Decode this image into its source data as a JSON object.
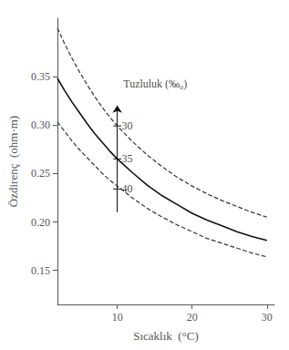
{
  "chart_data": {
    "type": "line",
    "x_label": "Sıcaklık  (°C)",
    "y_label": "Özdirenç  (ohm·m)",
    "x": [
      2,
      3,
      4,
      5,
      6,
      7,
      8,
      9,
      10,
      12,
      14,
      16,
      18,
      20,
      22,
      24,
      26,
      28,
      30
    ],
    "series": [
      {
        "color": "#333333",
        "line_style": "dashed",
        "values": [
          0.4,
          0.383,
          0.368,
          0.354,
          0.341,
          0.329,
          0.318,
          0.308,
          0.299,
          0.283,
          0.269,
          0.257,
          0.246,
          0.237,
          0.229,
          0.222,
          0.216,
          0.21,
          0.205
        ]
      },
      {
        "color": "#111111",
        "line_style": "solid",
        "values": [
          0.348,
          0.335,
          0.323,
          0.312,
          0.301,
          0.291,
          0.282,
          0.273,
          0.265,
          0.251,
          0.238,
          0.227,
          0.218,
          0.209,
          0.202,
          0.196,
          0.19,
          0.185,
          0.181
        ]
      },
      {
        "color": "#333333",
        "line_style": "dashed",
        "values": [
          0.303,
          0.293,
          0.283,
          0.274,
          0.266,
          0.258,
          0.25,
          0.243,
          0.237,
          0.225,
          0.214,
          0.205,
          0.197,
          0.19,
          0.183,
          0.178,
          0.173,
          0.168,
          0.164
        ]
      }
    ],
    "xlim": [
      2,
      31
    ],
    "ylim": [
      0.115,
      0.41
    ],
    "xticks": [
      10,
      20,
      30
    ],
    "yticks": [
      0.15,
      {
        "value": 0.2,
        "label": "0.20"
      },
      0.25,
      {
        "value": 0.3,
        "label": "0.30"
      },
      0.35
    ],
    "grid": false,
    "legend": false,
    "annotations": [
      {
        "text": "30",
        "x": 10.6,
        "y": 0.299,
        "color": "#111111"
      },
      {
        "text": "35",
        "x": 10.6,
        "y": 0.265,
        "color": "#111111"
      },
      {
        "text": "40",
        "x": 10.6,
        "y": 0.234,
        "color": "#111111"
      },
      {
        "text": "Tuzluluk (‰₀)",
        "x": 10.8,
        "y": 0.342,
        "color": "#111111"
      }
    ],
    "arrow": {
      "x": 10.0,
      "y_from": 0.21,
      "y_to": 0.32,
      "ticks": [
        0.299,
        0.265,
        0.234
      ],
      "color": "#111111"
    }
  }
}
